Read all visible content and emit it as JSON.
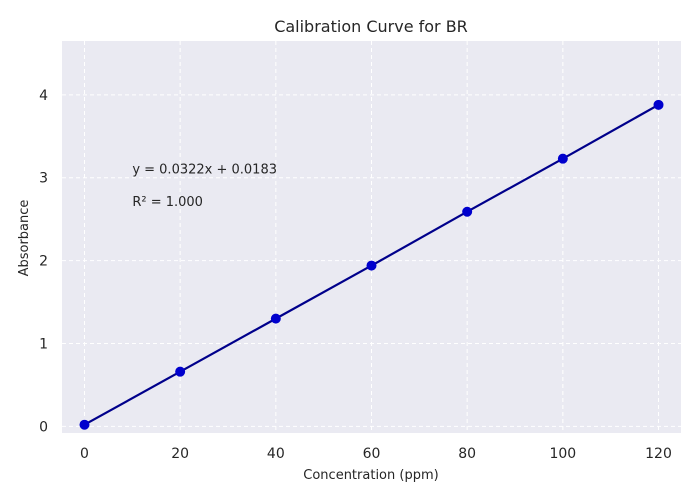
{
  "chart_data": {
    "type": "line",
    "title": "Calibration Curve for BR",
    "xlabel": "Concentration (ppm)",
    "ylabel": "Absorbance",
    "x": [
      0,
      20,
      40,
      60,
      80,
      100,
      120
    ],
    "series": [
      {
        "values": [
          0.02,
          0.66,
          1.3,
          1.94,
          2.59,
          3.23,
          3.88
        ]
      }
    ],
    "xlim": [
      -4.7,
      124.7
    ],
    "ylim": [
      -0.08,
      4.65
    ],
    "xticks": [
      "0",
      "20",
      "40",
      "60",
      "80",
      "100",
      "120"
    ],
    "yticks": [
      "0",
      "1",
      "2",
      "3",
      "4"
    ],
    "grid": true,
    "line_color": "#00008b",
    "marker_color": "#0000cd",
    "background_color": "#eaeaf2",
    "annotations": [
      {
        "text": "y = 0.0322x + 0.0183",
        "x": 10,
        "y": 3.11
      },
      {
        "text": "R² = 1.000",
        "x": 10,
        "y": 2.72
      }
    ]
  }
}
